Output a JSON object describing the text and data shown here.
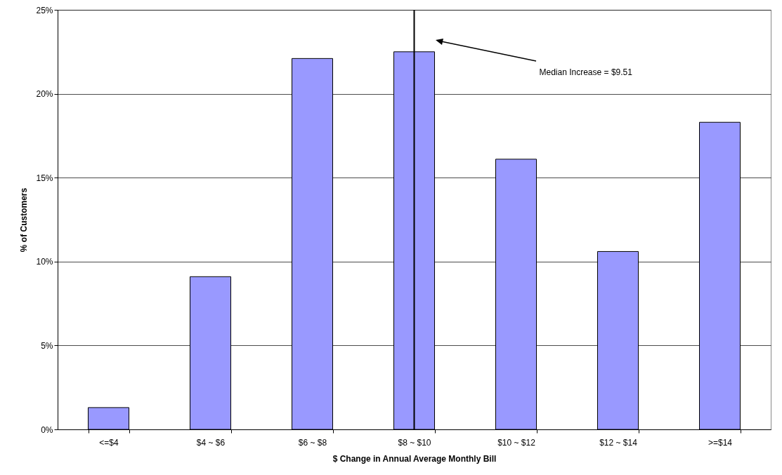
{
  "chart_data": {
    "type": "bar",
    "xlabel": "$ Change in Annual Average Monthly Bill",
    "ylabel": "% of Customers",
    "categories": [
      "<=$4",
      "$4 ~ $6",
      "$6 ~ $8",
      "$8 ~ $10",
      "$10 ~ $12",
      "$12 ~ $14",
      ">=$14"
    ],
    "values": [
      1.3,
      9.1,
      22.1,
      22.5,
      16.1,
      10.6,
      18.3
    ],
    "color": "#9999ff",
    "ylim": [
      0,
      25
    ],
    "yticks": [
      {
        "value": 0,
        "label": "0%"
      },
      {
        "value": 5,
        "label": "5%"
      },
      {
        "value": 10,
        "label": "10%"
      },
      {
        "value": 15,
        "label": "15%"
      },
      {
        "value": 20,
        "label": "20%"
      },
      {
        "value": 25,
        "label": "25%"
      }
    ],
    "grid": "y",
    "ref_lines": [
      {
        "axis": "x",
        "value": "$8 ~ $10",
        "label": "Median Increase = $9.51",
        "color": "#000000"
      }
    ]
  }
}
